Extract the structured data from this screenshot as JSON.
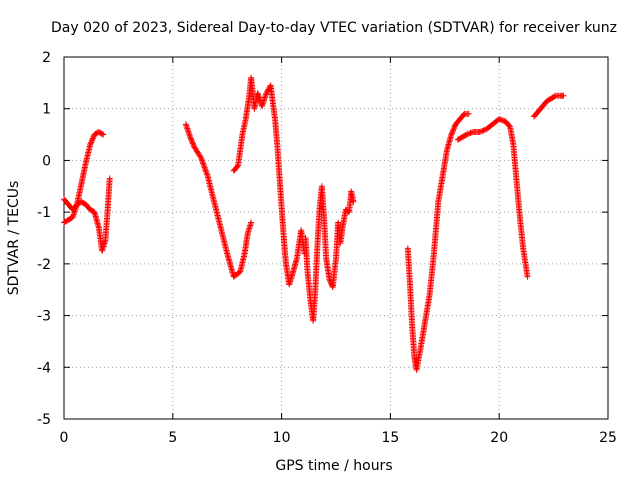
{
  "chart_data": {
    "type": "scatter",
    "title": "Day 020 of 2023, Sidereal Day-to-day VTEC variation (SDTVAR) for receiver kunz",
    "xlabel": "GPS time / hours",
    "ylabel": "SDTVAR / TECUs",
    "xlim": [
      0,
      25
    ],
    "ylim": [
      -5,
      2
    ],
    "x_ticks": [
      0,
      5,
      10,
      15,
      20,
      25
    ],
    "y_ticks": [
      -5,
      -4,
      -3,
      -2,
      -1,
      0,
      1,
      2
    ],
    "x_tick_labels": [
      "0",
      "5",
      "10",
      "15",
      "20",
      "25"
    ],
    "y_tick_labels": [
      "-5",
      "-4",
      "-3",
      "-2",
      "-1",
      "0",
      "1",
      "2"
    ],
    "grid": true,
    "marker": "+",
    "series_color": "#ff0000",
    "segments": [
      {
        "name": "seg-a",
        "points": [
          [
            0.0,
            -1.2
          ],
          [
            0.2,
            -1.15
          ],
          [
            0.4,
            -1.1
          ],
          [
            0.6,
            -0.85
          ],
          [
            0.8,
            -0.45
          ],
          [
            1.0,
            -0.05
          ],
          [
            1.2,
            0.3
          ],
          [
            1.4,
            0.5
          ],
          [
            1.6,
            0.55
          ],
          [
            1.8,
            0.5
          ]
        ]
      },
      {
        "name": "seg-b",
        "points": [
          [
            0.0,
            -0.75
          ],
          [
            0.2,
            -0.85
          ],
          [
            0.4,
            -0.95
          ],
          [
            0.6,
            -0.85
          ],
          [
            0.8,
            -0.8
          ],
          [
            1.0,
            -0.85
          ],
          [
            1.2,
            -0.95
          ],
          [
            1.4,
            -1.0
          ],
          [
            1.6,
            -1.3
          ],
          [
            1.75,
            -1.75
          ],
          [
            1.9,
            -1.55
          ],
          [
            2.0,
            -1.0
          ],
          [
            2.1,
            -0.35
          ]
        ]
      },
      {
        "name": "seg-c",
        "points": [
          [
            5.6,
            0.7
          ],
          [
            5.8,
            0.45
          ],
          [
            6.0,
            0.25
          ],
          [
            6.3,
            0.05
          ],
          [
            6.6,
            -0.3
          ],
          [
            6.9,
            -0.8
          ],
          [
            7.2,
            -1.3
          ],
          [
            7.5,
            -1.8
          ],
          [
            7.8,
            -2.25
          ],
          [
            8.1,
            -2.15
          ],
          [
            8.3,
            -1.8
          ],
          [
            8.45,
            -1.4
          ],
          [
            8.6,
            -1.2
          ]
        ]
      },
      {
        "name": "seg-d",
        "points": [
          [
            7.8,
            -0.2
          ],
          [
            8.0,
            -0.1
          ],
          [
            8.2,
            0.5
          ],
          [
            8.35,
            0.8
          ],
          [
            8.5,
            1.2
          ],
          [
            8.6,
            1.6
          ],
          [
            8.75,
            1.0
          ],
          [
            8.9,
            1.3
          ],
          [
            9.1,
            1.05
          ],
          [
            9.3,
            1.3
          ],
          [
            9.5,
            1.45
          ],
          [
            9.6,
            1.1
          ],
          [
            9.7,
            0.8
          ],
          [
            9.8,
            0.3
          ],
          [
            9.9,
            -0.3
          ],
          [
            10.0,
            -0.9
          ],
          [
            10.1,
            -1.5
          ],
          [
            10.2,
            -2.0
          ],
          [
            10.35,
            -2.4
          ],
          [
            10.5,
            -2.2
          ],
          [
            10.7,
            -1.9
          ],
          [
            10.9,
            -1.35
          ],
          [
            11.05,
            -1.8
          ]
        ]
      },
      {
        "name": "seg-e",
        "points": [
          [
            11.1,
            -1.5
          ],
          [
            11.2,
            -2.2
          ],
          [
            11.35,
            -2.8
          ],
          [
            11.45,
            -3.1
          ],
          [
            11.55,
            -2.5
          ],
          [
            11.65,
            -1.6
          ],
          [
            11.75,
            -0.9
          ],
          [
            11.85,
            -0.5
          ],
          [
            11.95,
            -1.1
          ],
          [
            12.05,
            -1.9
          ],
          [
            12.2,
            -2.3
          ],
          [
            12.35,
            -2.45
          ],
          [
            12.5,
            -1.9
          ],
          [
            12.6,
            -1.2
          ],
          [
            12.7,
            -1.6
          ],
          [
            12.8,
            -1.3
          ],
          [
            12.95,
            -0.95
          ],
          [
            13.1,
            -1.0
          ],
          [
            13.2,
            -0.6
          ],
          [
            13.3,
            -0.8
          ]
        ]
      },
      {
        "name": "seg-f",
        "points": [
          [
            15.8,
            -1.7
          ],
          [
            15.9,
            -2.4
          ],
          [
            16.0,
            -3.2
          ],
          [
            16.1,
            -3.8
          ],
          [
            16.2,
            -4.05
          ],
          [
            16.4,
            -3.6
          ],
          [
            16.6,
            -3.1
          ],
          [
            16.8,
            -2.6
          ],
          [
            17.0,
            -1.8
          ],
          [
            17.2,
            -0.8
          ],
          [
            17.4,
            -0.3
          ],
          [
            17.6,
            0.2
          ],
          [
            17.8,
            0.5
          ],
          [
            18.0,
            0.7
          ],
          [
            18.2,
            0.8
          ],
          [
            18.4,
            0.9
          ],
          [
            18.6,
            0.9
          ]
        ]
      },
      {
        "name": "seg-g",
        "points": [
          [
            18.1,
            0.4
          ],
          [
            18.3,
            0.45
          ],
          [
            18.5,
            0.5
          ],
          [
            18.8,
            0.55
          ],
          [
            19.1,
            0.55
          ],
          [
            19.4,
            0.6
          ],
          [
            19.7,
            0.7
          ],
          [
            20.0,
            0.8
          ],
          [
            20.3,
            0.75
          ],
          [
            20.5,
            0.65
          ],
          [
            20.65,
            0.3
          ],
          [
            20.8,
            -0.4
          ],
          [
            20.95,
            -1.1
          ],
          [
            21.1,
            -1.7
          ],
          [
            21.3,
            -2.25
          ]
        ]
      },
      {
        "name": "seg-h",
        "points": [
          [
            21.6,
            0.85
          ],
          [
            21.8,
            0.95
          ],
          [
            22.0,
            1.05
          ],
          [
            22.2,
            1.15
          ],
          [
            22.4,
            1.2
          ],
          [
            22.6,
            1.25
          ],
          [
            22.8,
            1.25
          ],
          [
            22.95,
            1.25
          ]
        ]
      }
    ]
  }
}
